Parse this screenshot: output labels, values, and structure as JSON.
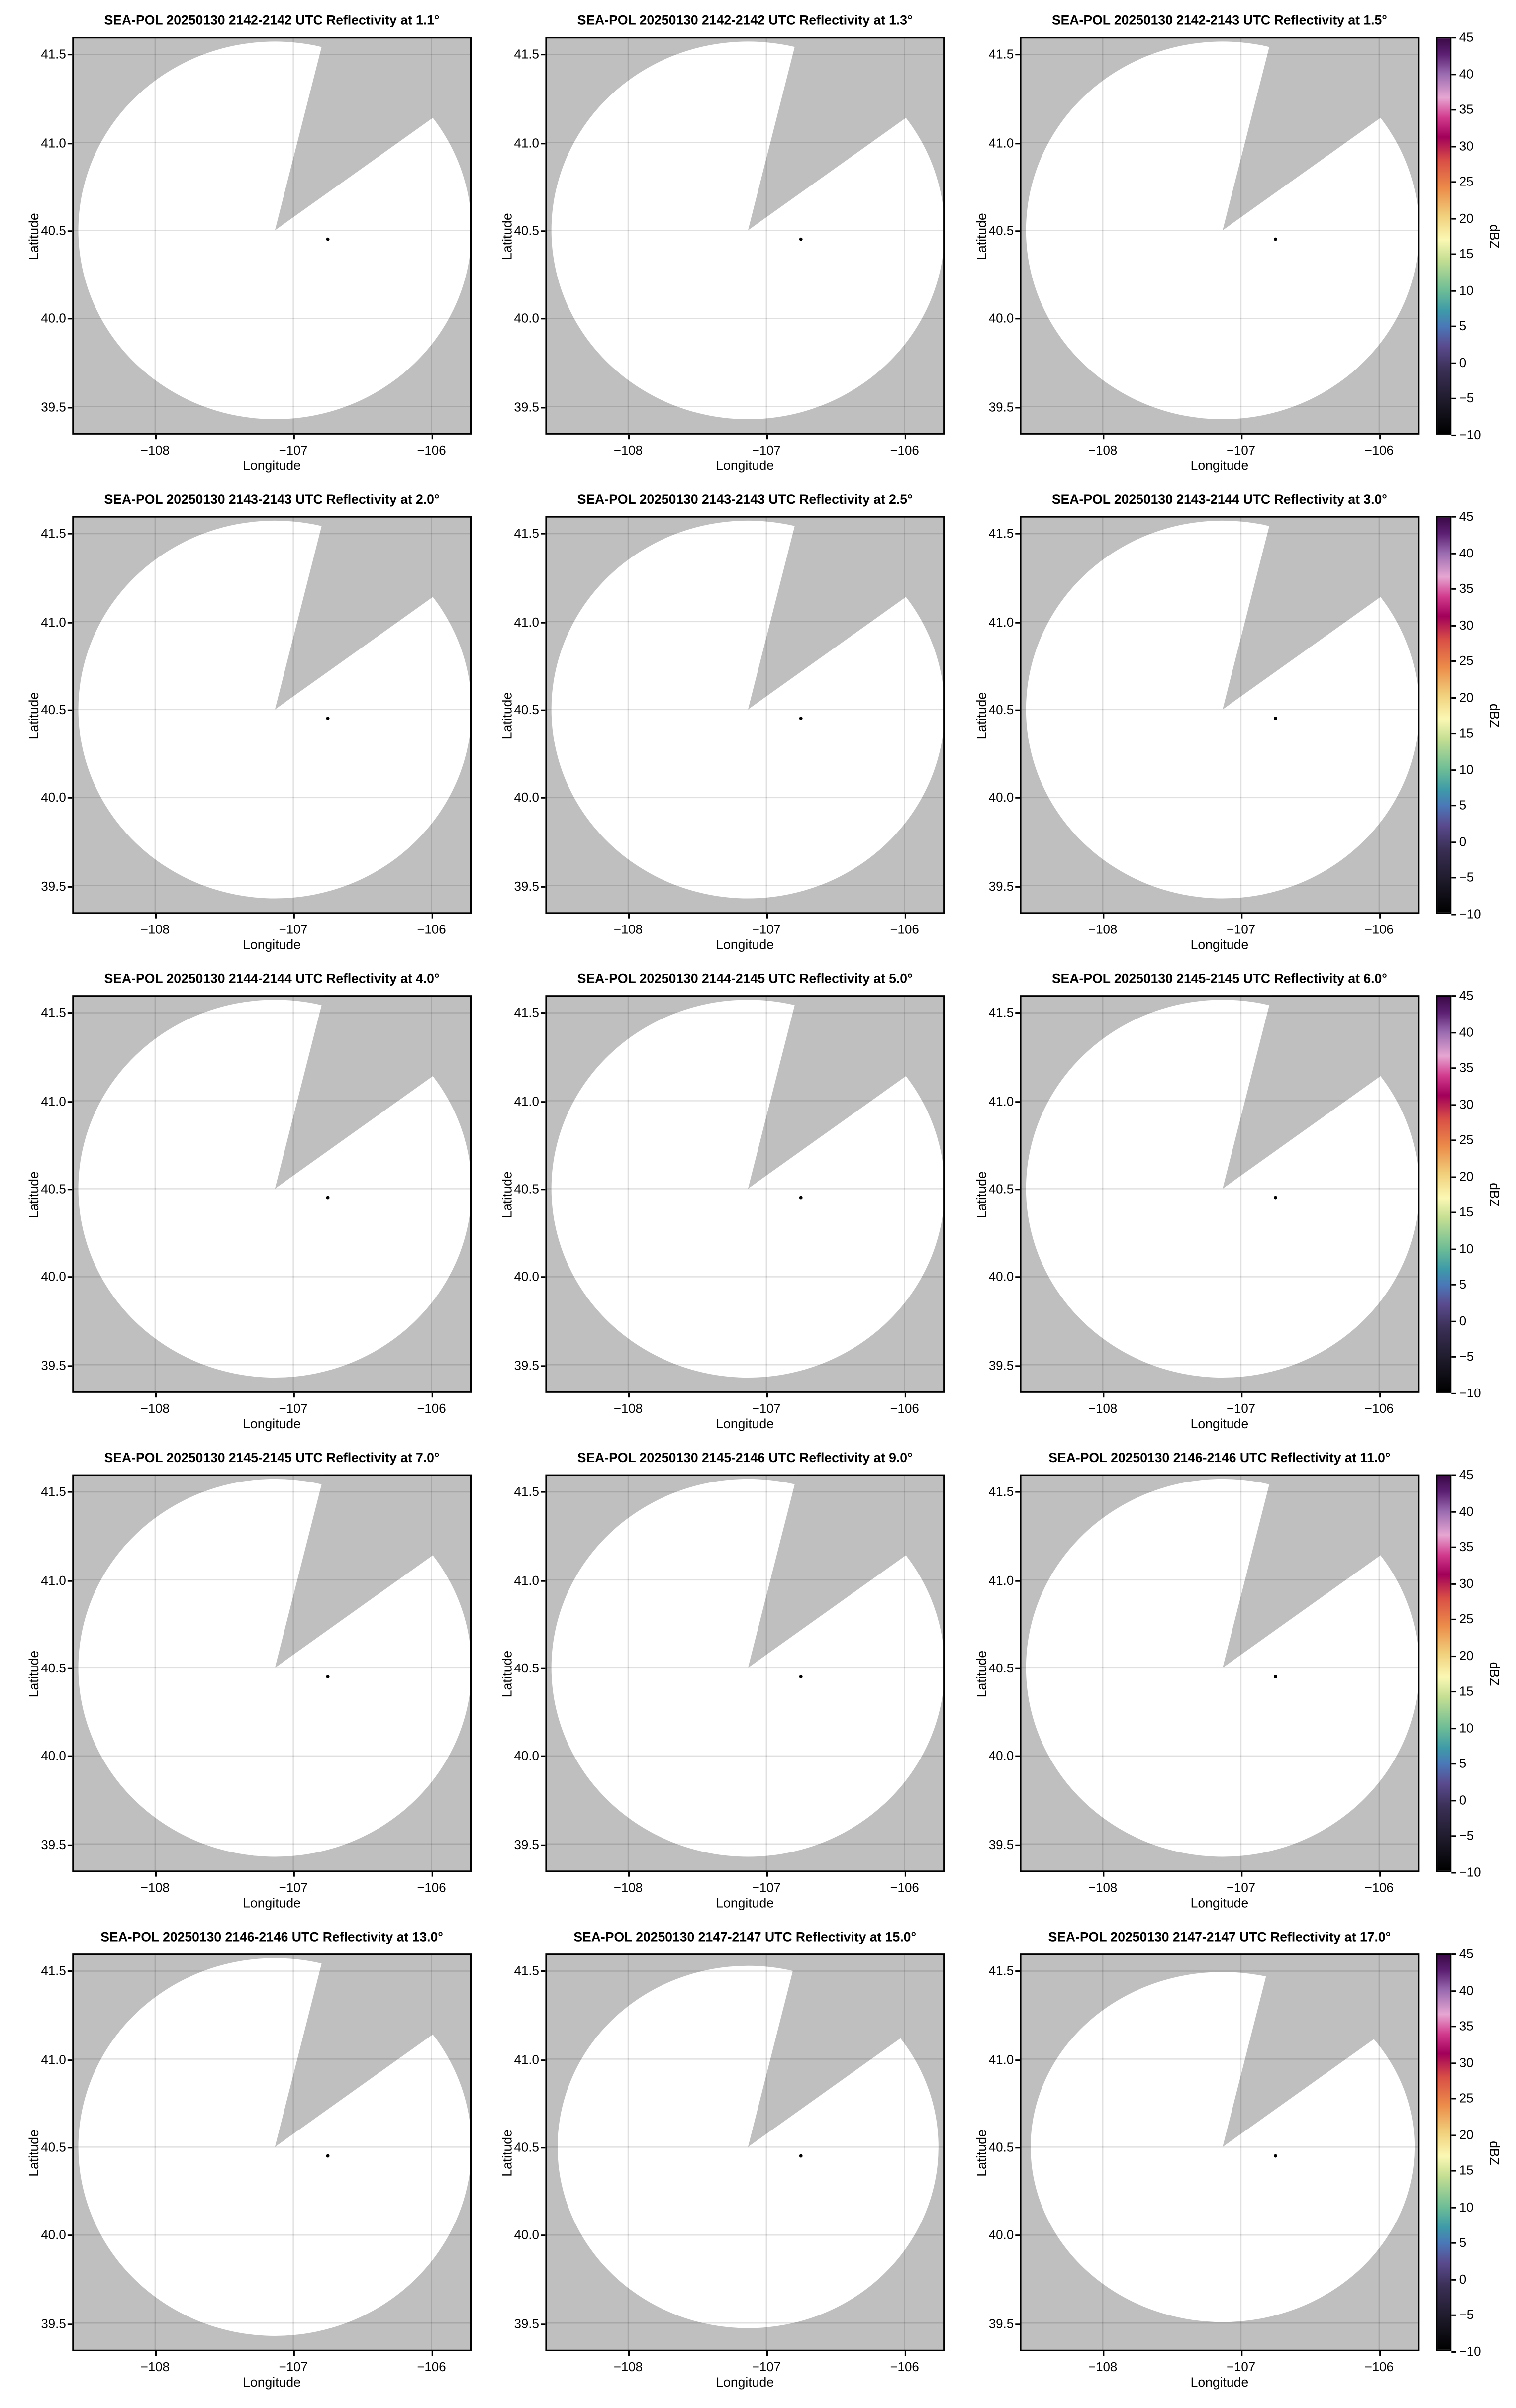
{
  "chart_data": [
    {
      "type": "heatmap",
      "title": "SEA-POL 20250130 2142-2142 UTC Reflectivity at 1.1°",
      "elevation": 1.1,
      "colorbar": false
    },
    {
      "type": "heatmap",
      "title": "SEA-POL 20250130 2142-2142 UTC Reflectivity at 1.3°",
      "elevation": 1.3,
      "colorbar": false
    },
    {
      "type": "heatmap",
      "title": "SEA-POL 20250130 2142-2143 UTC Reflectivity at 1.5°",
      "elevation": 1.5,
      "colorbar": true
    },
    {
      "type": "heatmap",
      "title": "SEA-POL 20250130 2143-2143 UTC Reflectivity at 2.0°",
      "elevation": 2.0,
      "colorbar": false
    },
    {
      "type": "heatmap",
      "title": "SEA-POL 20250130 2143-2143 UTC Reflectivity at 2.5°",
      "elevation": 2.5,
      "colorbar": false
    },
    {
      "type": "heatmap",
      "title": "SEA-POL 20250130 2143-2144 UTC Reflectivity at 3.0°",
      "elevation": 3.0,
      "colorbar": true
    },
    {
      "type": "heatmap",
      "title": "SEA-POL 20250130 2144-2144 UTC Reflectivity at 4.0°",
      "elevation": 4.0,
      "colorbar": false
    },
    {
      "type": "heatmap",
      "title": "SEA-POL 20250130 2144-2145 UTC Reflectivity at 5.0°",
      "elevation": 5.0,
      "colorbar": false
    },
    {
      "type": "heatmap",
      "title": "SEA-POL 20250130 2145-2145 UTC Reflectivity at 6.0°",
      "elevation": 6.0,
      "colorbar": true
    },
    {
      "type": "heatmap",
      "title": "SEA-POL 20250130 2145-2145 UTC Reflectivity at 7.0°",
      "elevation": 7.0,
      "colorbar": false
    },
    {
      "type": "heatmap",
      "title": "SEA-POL 20250130 2145-2146 UTC Reflectivity at 9.0°",
      "elevation": 9.0,
      "colorbar": false
    },
    {
      "type": "heatmap",
      "title": "SEA-POL 20250130 2146-2146 UTC Reflectivity at 11.0°",
      "elevation": 11.0,
      "colorbar": true
    },
    {
      "type": "heatmap",
      "title": "SEA-POL 20250130 2146-2146 UTC Reflectivity at 13.0°",
      "elevation": 13.0,
      "colorbar": false
    },
    {
      "type": "heatmap",
      "title": "SEA-POL 20250130 2147-2147 UTC Reflectivity at 15.0°",
      "elevation": 15.0,
      "colorbar": false
    },
    {
      "type": "heatmap",
      "title": "SEA-POL 20250130 2147-2147 UTC Reflectivity at 17.0°",
      "elevation": 17.0,
      "colorbar": true
    }
  ],
  "axes": {
    "xlabel": "Longitude",
    "ylabel": "Latitude",
    "xlim": [
      -108.6,
      -105.71
    ],
    "ylim": [
      39.34,
      41.6
    ],
    "xticks": [
      -108,
      -107,
      -106
    ],
    "xtick_labels": [
      "−108",
      "−107",
      "−106"
    ],
    "yticks": [
      39.5,
      40.0,
      40.5,
      41.0,
      41.5
    ],
    "ytick_labels": [
      "39.5",
      "40.0",
      "40.5",
      "41.0",
      "41.5"
    ],
    "grid": true
  },
  "radar_location": {
    "lon": -106.75,
    "lat": 40.45
  },
  "colorbar": {
    "label": "dBZ",
    "range": [
      -10,
      45
    ],
    "ticks": [
      "45",
      "40",
      "35",
      "30",
      "25",
      "20",
      "15",
      "10",
      "5",
      "0",
      "−5",
      "−10"
    ]
  },
  "colors": {
    "no_data": "#bfbfbf",
    "coverage": "#ffffff"
  }
}
